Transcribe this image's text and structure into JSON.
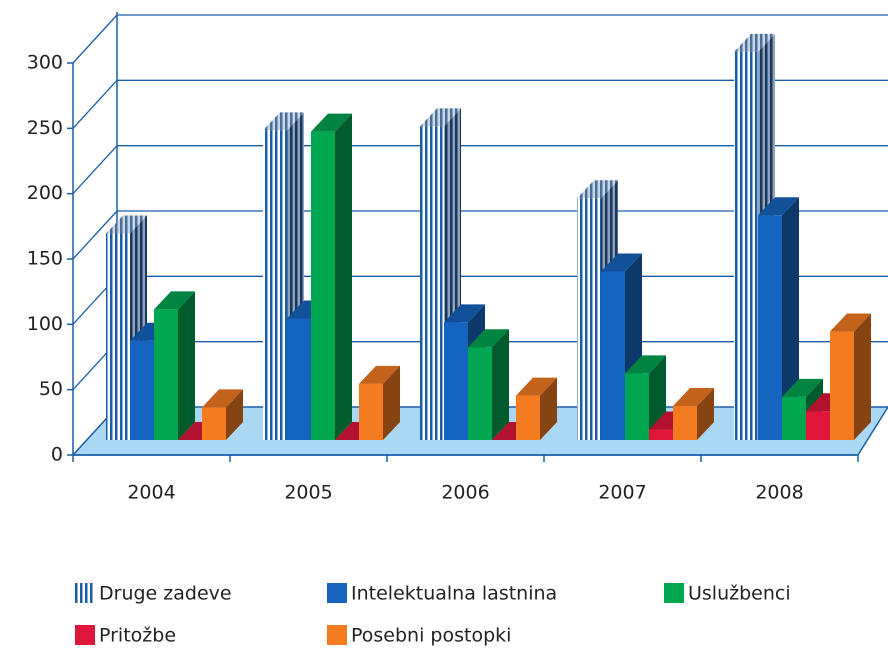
{
  "chart_data": {
    "type": "bar3d",
    "categories": [
      "2004",
      "2005",
      "2006",
      "2007",
      "2008"
    ],
    "series": [
      {
        "name": "Druge zadeve",
        "color": "#1a5ea8",
        "values": [
          158,
          237,
          240,
          185,
          297
        ]
      },
      {
        "name": "Intelektualna lastnina",
        "color": "#1565c0",
        "values": [
          76,
          93,
          90,
          129,
          172
        ]
      },
      {
        "name": "Uslužbenci",
        "color": "#00a650",
        "values": [
          100,
          236,
          71,
          51,
          33
        ]
      },
      {
        "name": "Pritožbe",
        "color": "#e0163b",
        "values": [
          0,
          0,
          0,
          8,
          22
        ]
      },
      {
        "name": "Posebni postopki",
        "color": "#f47b20",
        "values": [
          25,
          43,
          34,
          26,
          83
        ]
      }
    ],
    "ylim": [
      0,
      300
    ],
    "yticks": [
      0,
      50,
      100,
      150,
      200,
      250,
      300
    ],
    "grid": true
  }
}
